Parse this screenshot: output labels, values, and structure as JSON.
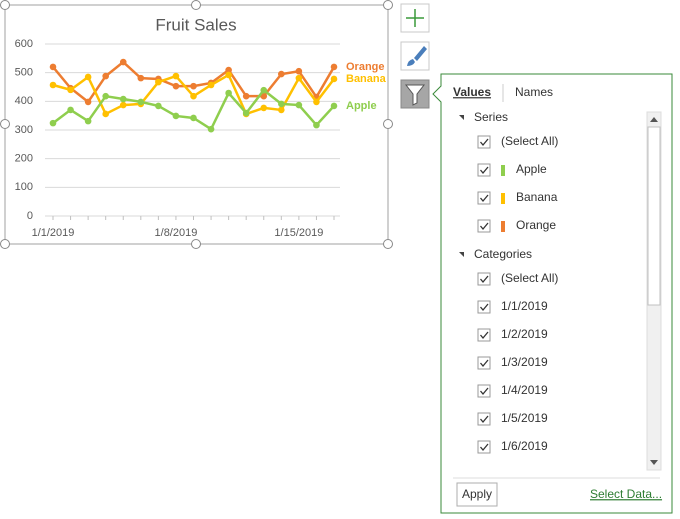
{
  "chart_data": {
    "type": "line",
    "title": "Fruit Sales",
    "categories": [
      "1/1/2019",
      null,
      null,
      null,
      null,
      null,
      null,
      "1/8/2019",
      null,
      null,
      null,
      null,
      null,
      null,
      "1/15/2019",
      null,
      null
    ],
    "ylim": [
      0,
      600
    ],
    "yticks": [
      0,
      100,
      200,
      300,
      400,
      500,
      600
    ],
    "grid": true,
    "series": [
      {
        "name": "Orange",
        "color": "#ed7d31",
        "values": [
          520,
          446,
          398,
          488,
          537,
          481,
          478,
          453,
          453,
          464,
          509,
          418,
          418,
          495,
          505,
          415,
          520
        ]
      },
      {
        "name": "Banana",
        "color": "#ffc000",
        "values": [
          457,
          440,
          485,
          356,
          387,
          391,
          467,
          488,
          418,
          457,
          492,
          356,
          377,
          370,
          481,
          398,
          478
        ]
      },
      {
        "name": "Apple",
        "color": "#8fce4e",
        "values": [
          324,
          370,
          331,
          418,
          408,
          398,
          384,
          349,
          342,
          303,
          429,
          359,
          439,
          391,
          387,
          317,
          384
        ]
      }
    ]
  },
  "panel": {
    "tabs": [
      "Values",
      "Names"
    ],
    "series_header": "Series",
    "categories_header": "Categories",
    "select_all": "(Select All)",
    "filter_categories": [
      "1/1/2019",
      "1/2/2019",
      "1/3/2019",
      "1/4/2019",
      "1/5/2019",
      "1/6/2019"
    ],
    "apply": "Apply",
    "select_data": "Select Data..."
  }
}
